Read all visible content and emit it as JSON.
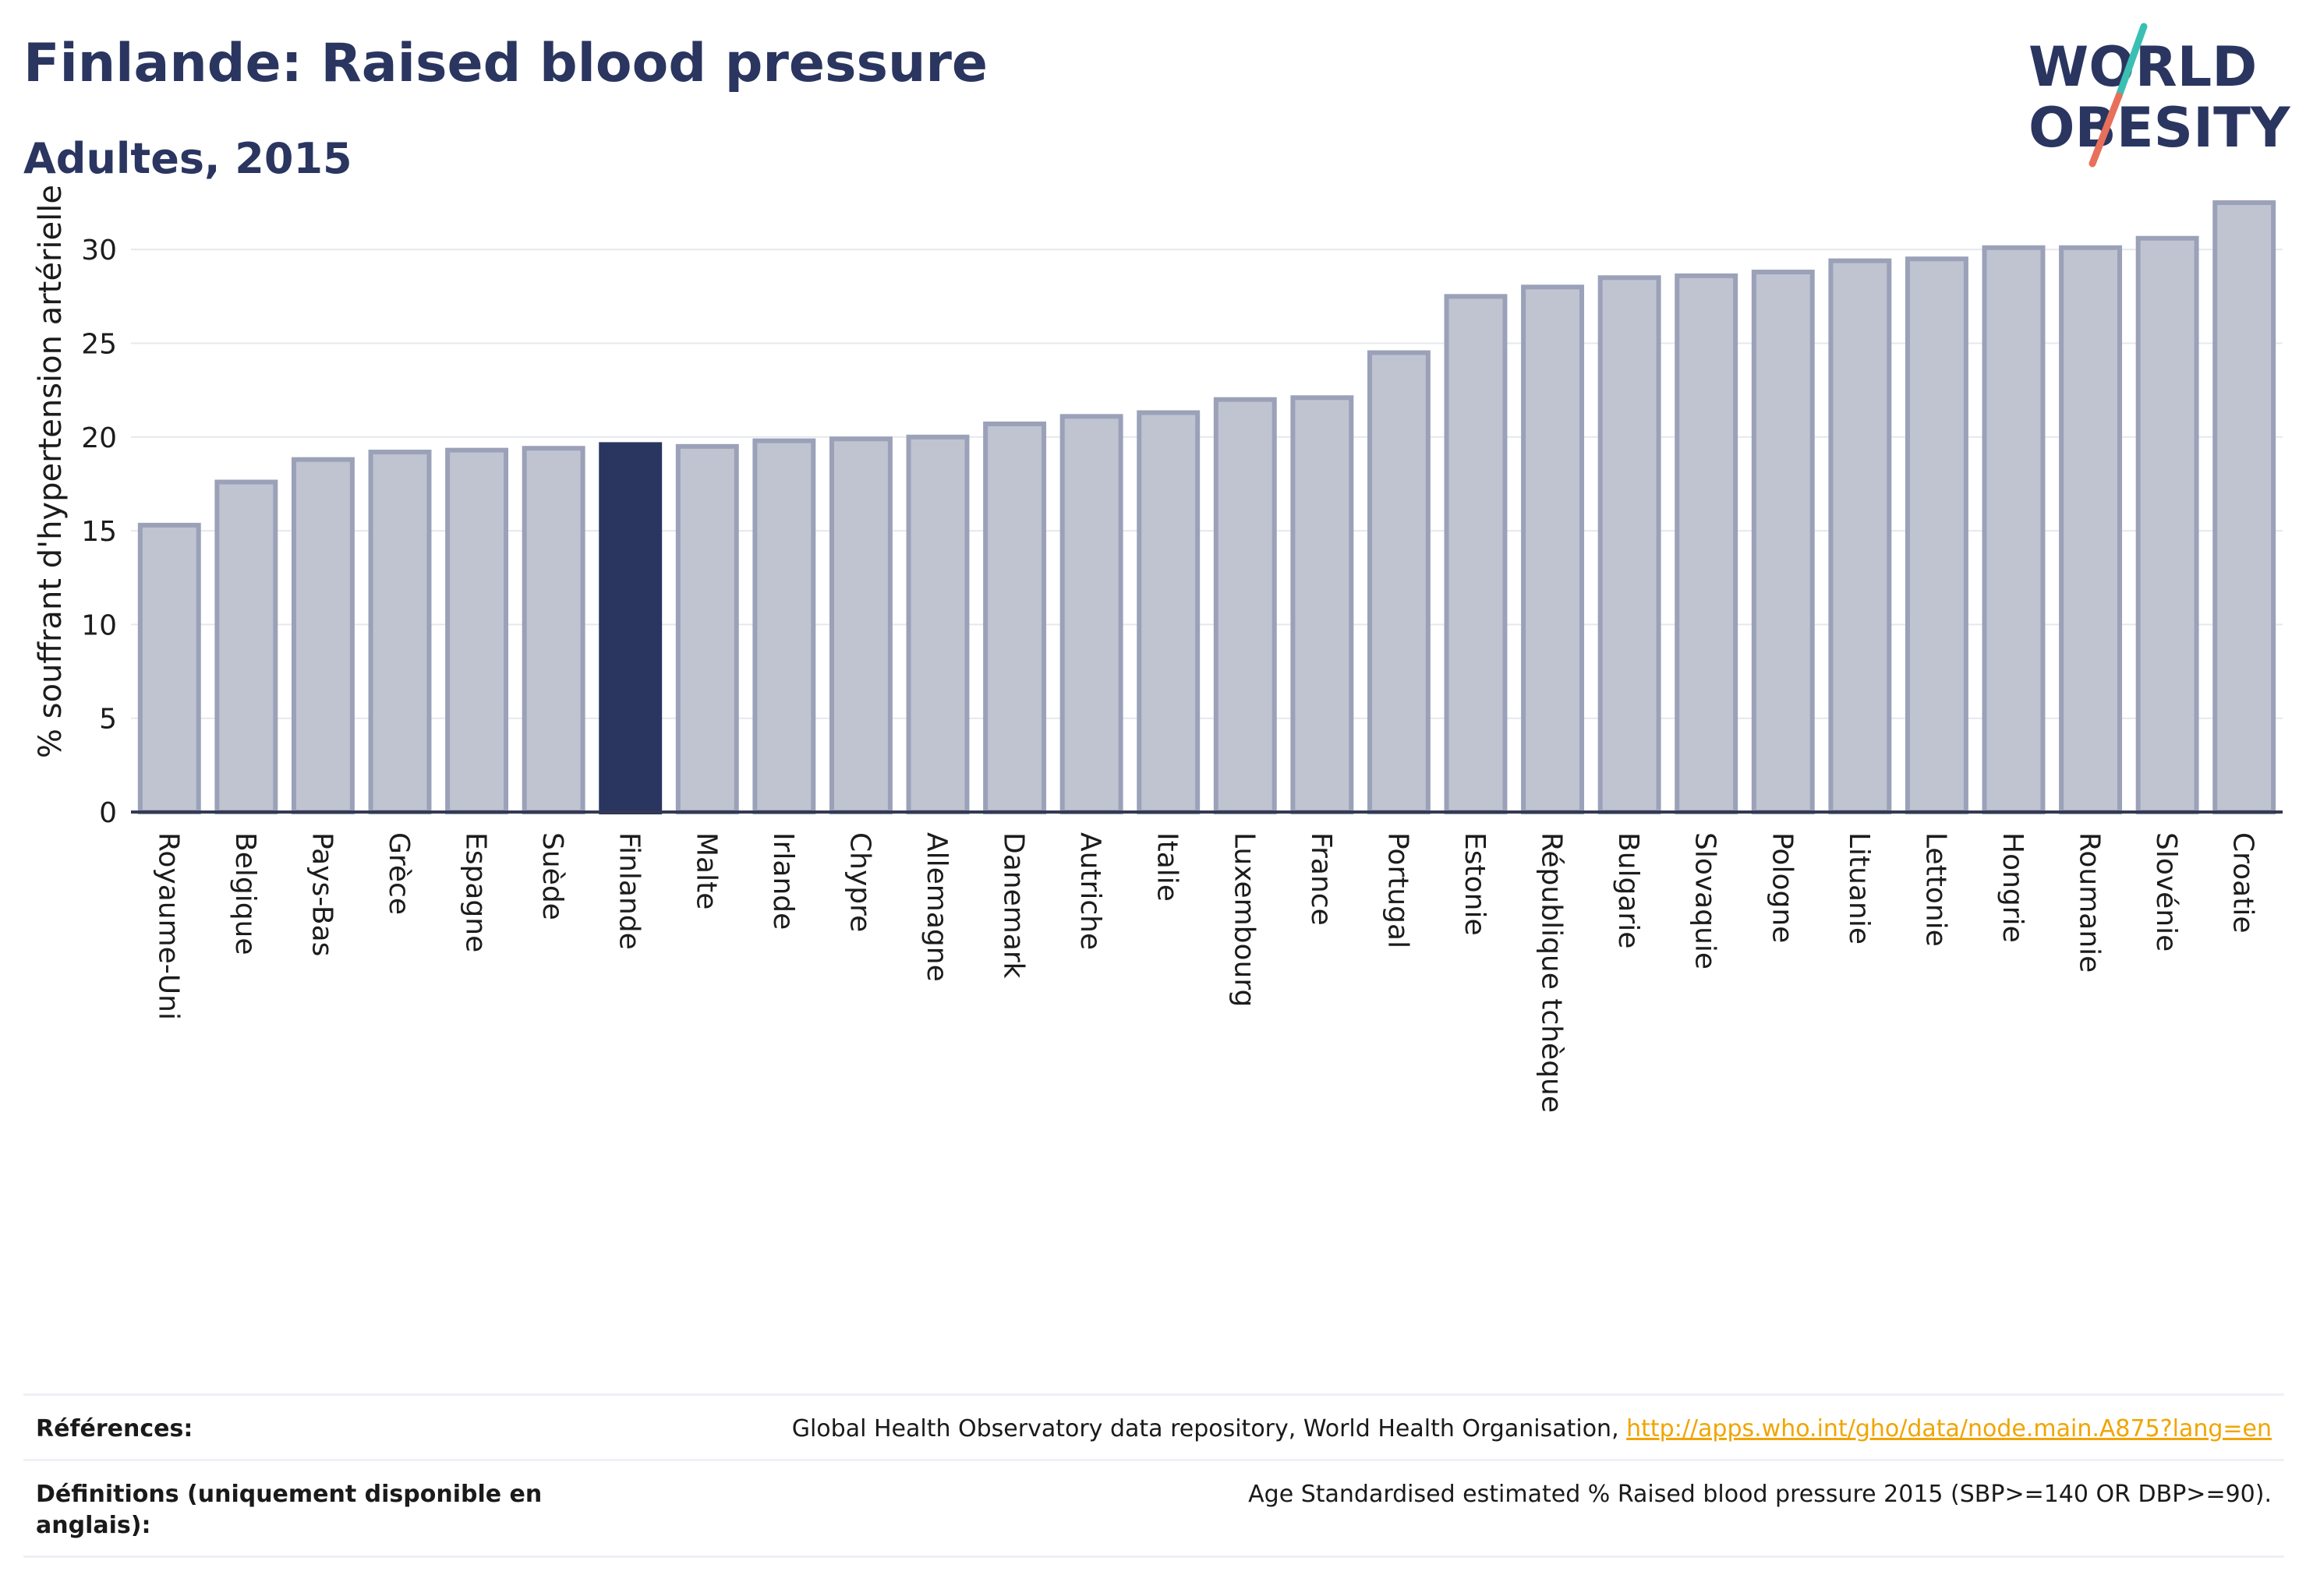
{
  "header": {
    "title": "Finlande: Raised blood pressure",
    "subtitle": "Adultes, 2015"
  },
  "logo": {
    "line1": "WORLD",
    "line2": "OBESITY",
    "slash_top_color": "#3bbfb3",
    "slash_bottom_color": "#e8705a"
  },
  "colors": {
    "highlight": "#2a3560",
    "bar_fill": "#c0c4d0",
    "bar_stroke": "#9aa1b8",
    "link": "#f0a500"
  },
  "chart_data": {
    "type": "bar",
    "ylabel": "% souffrant d'hypertension artérielle",
    "xlabel": "",
    "ylim": [
      0,
      33
    ],
    "yticks": [
      0,
      5,
      10,
      15,
      20,
      25,
      30
    ],
    "grid": true,
    "highlight": "Finlande",
    "categories": [
      "Royaume-Uni",
      "Belgique",
      "Pays-Bas",
      "Grèce",
      "Espagne",
      "Suède",
      "Finlande",
      "Malte",
      "Irlande",
      "Chypre",
      "Allemagne",
      "Danemark",
      "Autriche",
      "Italie",
      "Luxembourg",
      "France",
      "Portugal",
      "Estonie",
      "République tchèque",
      "Bulgarie",
      "Slovaquie",
      "Pologne",
      "Lituanie",
      "Lettonie",
      "Hongrie",
      "Roumanie",
      "Slovénie",
      "Croatie"
    ],
    "values": [
      15.3,
      17.6,
      18.8,
      19.2,
      19.3,
      19.4,
      19.6,
      19.5,
      19.8,
      19.9,
      20.0,
      20.7,
      21.1,
      21.3,
      22.0,
      22.1,
      24.5,
      27.5,
      28.0,
      28.5,
      28.6,
      28.8,
      29.4,
      29.5,
      30.1,
      30.1,
      30.6,
      32.5
    ]
  },
  "footer": {
    "references_label": "Références:",
    "references_text": "Global Health Observatory data repository, World Health Organisation, ",
    "references_link": "http://apps.who.int/gho/data/node.main.A875?lang=en",
    "definitions_label": "Définitions (uniquement disponible en anglais):",
    "definitions_text": "Age Standardised estimated % Raised blood pressure 2015 (SBP>=140 OR DBP>=90)."
  }
}
